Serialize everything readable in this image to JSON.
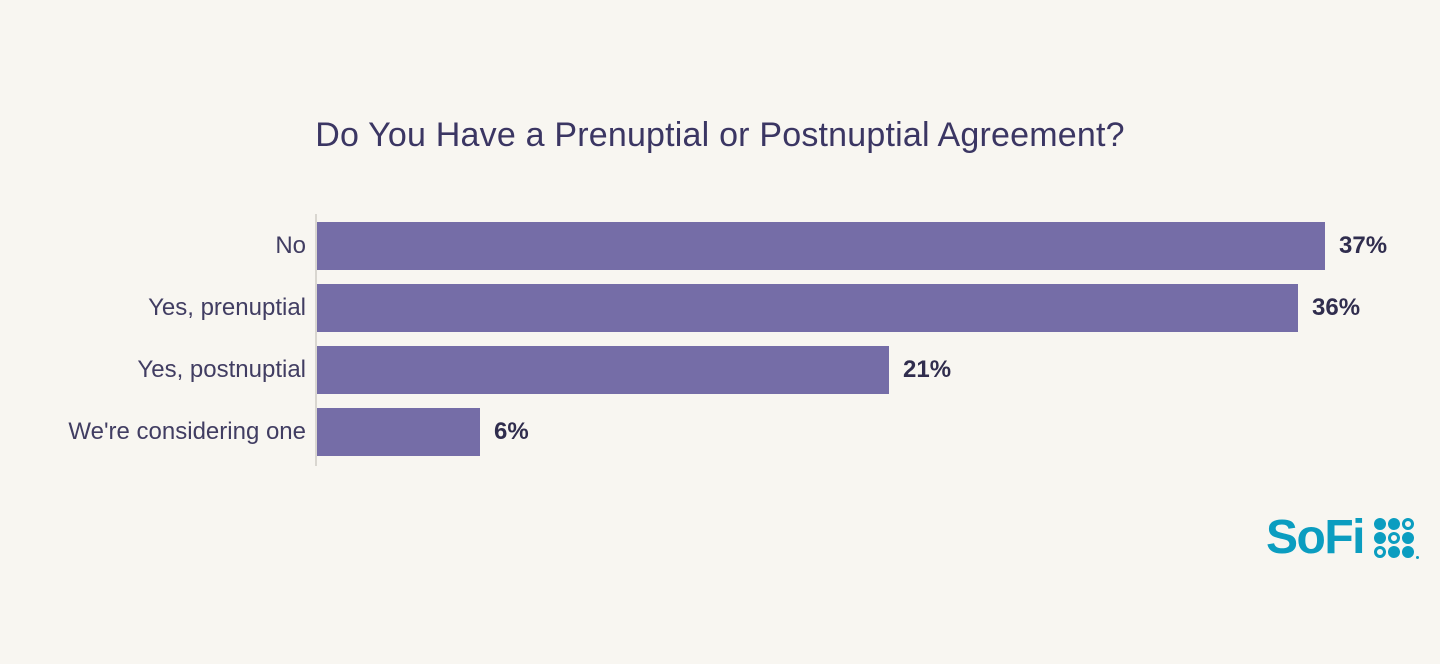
{
  "page": {
    "background": "#f8f6f1"
  },
  "chart_data": {
    "type": "bar",
    "orientation": "horizontal",
    "title": "Do You Have a Prenuptial or Postnuptial Agreement?",
    "categories": [
      "No",
      "Yes, prenuptial",
      "Yes, postnuptial",
      "We're considering one"
    ],
    "values": [
      37,
      36,
      21,
      6
    ],
    "value_labels": [
      "37%",
      "36%",
      "21%",
      "6%"
    ],
    "xlim": [
      0,
      37
    ],
    "grid": false,
    "legend": false,
    "bar_color": "#756da7",
    "title_color": "#3b3663",
    "category_label_color": "#413d62",
    "value_label_color": "#302d4e",
    "axis_line_color": "#d9d6d0"
  },
  "branding": {
    "logo_text": "SoFi",
    "logo_color": "#0b9dc0",
    "logo_dot_pattern": [
      [
        1,
        1,
        0
      ],
      [
        1,
        0,
        1
      ],
      [
        0,
        1,
        1
      ]
    ]
  }
}
